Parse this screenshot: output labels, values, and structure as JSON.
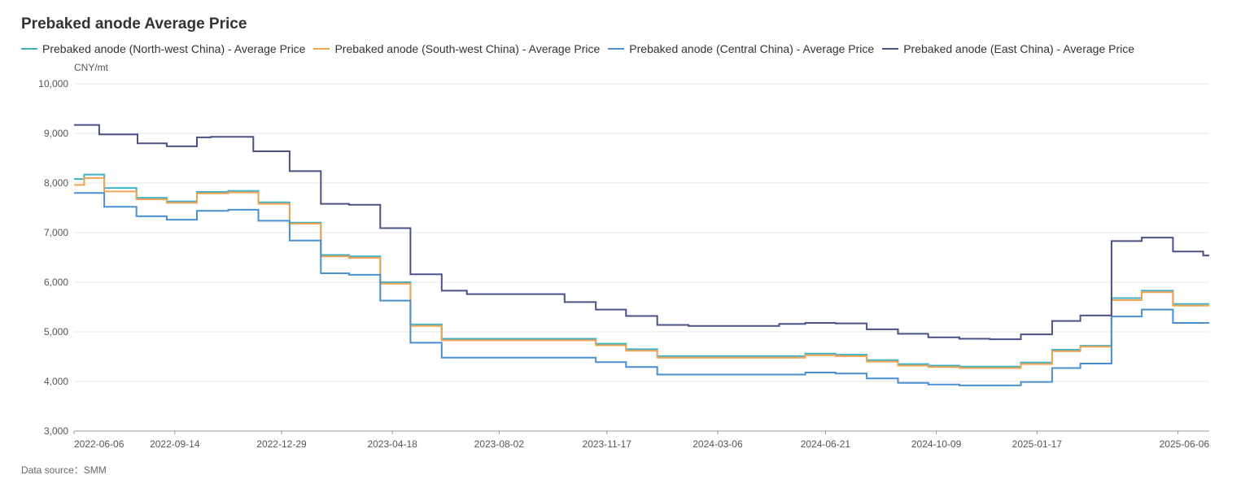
{
  "title": "Prebaked anode Average Price",
  "source": "Data source：SMM",
  "chart_data": {
    "type": "line",
    "title": "Prebaked anode Average Price",
    "ylabel": "CNY/mt",
    "ylim": [
      3000,
      10000
    ],
    "yticks": [
      3000,
      4000,
      5000,
      6000,
      7000,
      8000,
      9000,
      10000
    ],
    "xlim": [
      "2022-06-06",
      "2025-07-07"
    ],
    "xticks": [
      "2022-06-06",
      "2022-09-14",
      "2022-12-29",
      "2023-04-18",
      "2023-08-02",
      "2023-11-17",
      "2024-03-06",
      "2024-06-21",
      "2024-10-09",
      "2025-01-17",
      "2025-06-06"
    ],
    "step": true,
    "grid": true,
    "legend": "top",
    "series": [
      {
        "name": "Prebaked anode (North-west China) - Average Price",
        "color": "#3fb1c5",
        "x": [
          "2022-06-06",
          "2022-06-16",
          "2022-07-06",
          "2022-08-07",
          "2022-09-06",
          "2022-10-06",
          "2022-11-06",
          "2022-12-06",
          "2023-01-06",
          "2023-02-06",
          "2023-03-06",
          "2023-04-06",
          "2023-05-06",
          "2023-06-06",
          "2023-11-06",
          "2023-12-06",
          "2024-01-06",
          "2024-06-01",
          "2024-07-01",
          "2024-08-01",
          "2024-09-01",
          "2024-10-01",
          "2024-11-01",
          "2024-12-01",
          "2025-01-01",
          "2025-02-01",
          "2025-03-01",
          "2025-04-01",
          "2025-05-01",
          "2025-06-01",
          "2025-07-07"
        ],
        "values": [
          8080,
          8170,
          7900,
          7700,
          7630,
          7820,
          7840,
          7610,
          7200,
          6550,
          6520,
          6000,
          5150,
          4860,
          4760,
          4650,
          4510,
          4560,
          4540,
          4430,
          4350,
          4320,
          4300,
          4300,
          4380,
          4640,
          4720,
          5680,
          5830,
          5560,
          5560
        ]
      },
      {
        "name": "Prebaked anode (South-west China) - Average Price",
        "color": "#f0a452",
        "x": [
          "2022-06-06",
          "2022-06-16",
          "2022-07-06",
          "2022-08-07",
          "2022-09-06",
          "2022-10-06",
          "2022-11-06",
          "2022-12-06",
          "2023-01-06",
          "2023-02-06",
          "2023-03-06",
          "2023-04-06",
          "2023-05-06",
          "2023-06-06",
          "2023-11-06",
          "2023-12-06",
          "2024-01-06",
          "2024-06-01",
          "2024-07-01",
          "2024-08-01",
          "2024-09-01",
          "2024-10-01",
          "2024-11-01",
          "2024-12-01",
          "2025-01-01",
          "2025-02-01",
          "2025-03-01",
          "2025-04-01",
          "2025-05-01",
          "2025-06-01",
          "2025-07-07"
        ],
        "values": [
          7960,
          8100,
          7830,
          7670,
          7600,
          7790,
          7810,
          7580,
          7180,
          6520,
          6490,
          5970,
          5120,
          4830,
          4730,
          4620,
          4480,
          4530,
          4510,
          4400,
          4320,
          4290,
          4270,
          4270,
          4350,
          4610,
          4700,
          5640,
          5800,
          5530,
          5530
        ]
      },
      {
        "name": "Prebaked anode (Central China) - Average Price",
        "color": "#4a8fd0",
        "x": [
          "2022-06-06",
          "2022-06-16",
          "2022-07-06",
          "2022-08-07",
          "2022-09-06",
          "2022-10-06",
          "2022-11-06",
          "2022-12-06",
          "2023-01-06",
          "2023-02-06",
          "2023-03-06",
          "2023-04-06",
          "2023-05-06",
          "2023-06-06",
          "2023-11-06",
          "2023-12-06",
          "2024-01-06",
          "2024-06-01",
          "2024-07-01",
          "2024-08-01",
          "2024-09-01",
          "2024-10-01",
          "2024-11-01",
          "2024-12-01",
          "2025-01-01",
          "2025-02-01",
          "2025-03-01",
          "2025-04-01",
          "2025-05-01",
          "2025-06-01",
          "2025-07-07"
        ],
        "values": [
          7800,
          7800,
          7520,
          7330,
          7260,
          7440,
          7460,
          7240,
          6840,
          6180,
          6150,
          5630,
          4780,
          4480,
          4390,
          4290,
          4140,
          4180,
          4160,
          4060,
          3970,
          3940,
          3920,
          3920,
          3990,
          4270,
          4360,
          5310,
          5450,
          5180,
          5180
        ]
      },
      {
        "name": "Prebaked anode (East China) - Average Price",
        "color": "#4c5185",
        "x": [
          "2022-06-06",
          "2022-07-01",
          "2022-08-08",
          "2022-09-06",
          "2022-10-06",
          "2022-10-20",
          "2022-12-01",
          "2023-01-06",
          "2023-02-06",
          "2023-03-06",
          "2023-04-06",
          "2023-05-06",
          "2023-06-06",
          "2023-07-01",
          "2023-10-06",
          "2023-11-06",
          "2023-12-06",
          "2024-01-06",
          "2024-02-06",
          "2024-05-06",
          "2024-06-01",
          "2024-07-01",
          "2024-08-01",
          "2024-09-01",
          "2024-10-01",
          "2024-11-01",
          "2024-12-01",
          "2025-01-01",
          "2025-02-01",
          "2025-03-01",
          "2025-04-01",
          "2025-05-01",
          "2025-06-01",
          "2025-07-01",
          "2025-07-07"
        ],
        "values": [
          9170,
          8980,
          8800,
          8740,
          8920,
          8930,
          8640,
          8240,
          7580,
          7560,
          7090,
          6160,
          5830,
          5760,
          5600,
          5450,
          5320,
          5140,
          5120,
          5160,
          5180,
          5170,
          5050,
          4960,
          4890,
          4860,
          4850,
          4950,
          5220,
          5330,
          6830,
          6900,
          6620,
          6540,
          6540
        ]
      }
    ]
  }
}
